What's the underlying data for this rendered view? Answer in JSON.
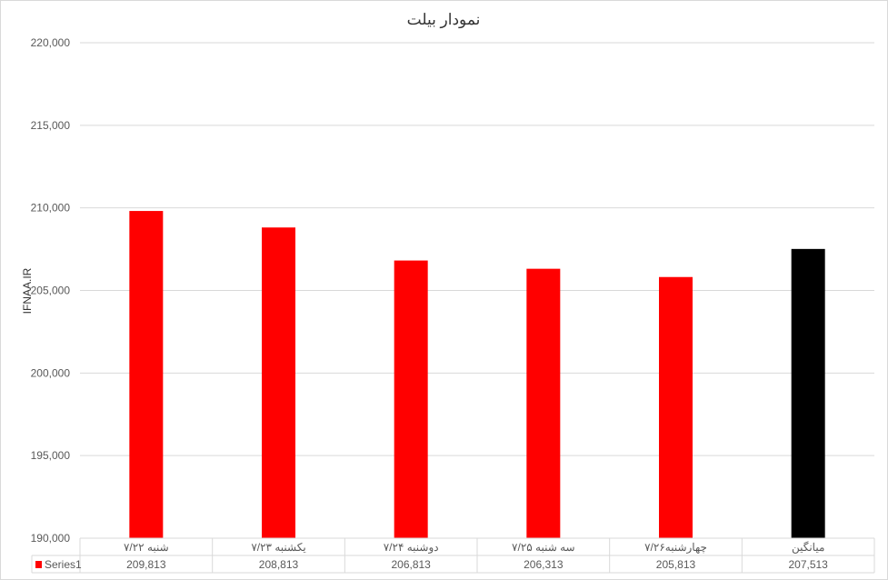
{
  "chart_data": {
    "type": "bar",
    "title": "نمودار بیلت",
    "ylabel": "IFNAA.IR",
    "xlabel": "",
    "categories": [
      "شنبه ۷/۲۲",
      "یکشنبه ۷/۲۳",
      "دوشنبه ۷/۲۴",
      "سه شنبه ۷/۲۵",
      "چهارشنبه۷/۲۶",
      "میانگین"
    ],
    "series": [
      {
        "name": "Series1",
        "values": [
          209813,
          208813,
          206813,
          206313,
          205813,
          207513
        ],
        "value_labels": [
          "209,813",
          "208,813",
          "206,813",
          "206,313",
          "205,813",
          "207,513"
        ]
      }
    ],
    "bar_colors": [
      "#ff0000",
      "#ff0000",
      "#ff0000",
      "#ff0000",
      "#ff0000",
      "#000000"
    ],
    "ylim": [
      190000,
      220000
    ],
    "yticks": [
      190000,
      195000,
      200000,
      205000,
      210000,
      215000,
      220000
    ],
    "ytick_labels": [
      "190,000",
      "195,000",
      "200,000",
      "205,000",
      "210,000",
      "215,000",
      "220,000"
    ],
    "grid": true,
    "legend": "data-table",
    "series_color": "#ff0000"
  }
}
